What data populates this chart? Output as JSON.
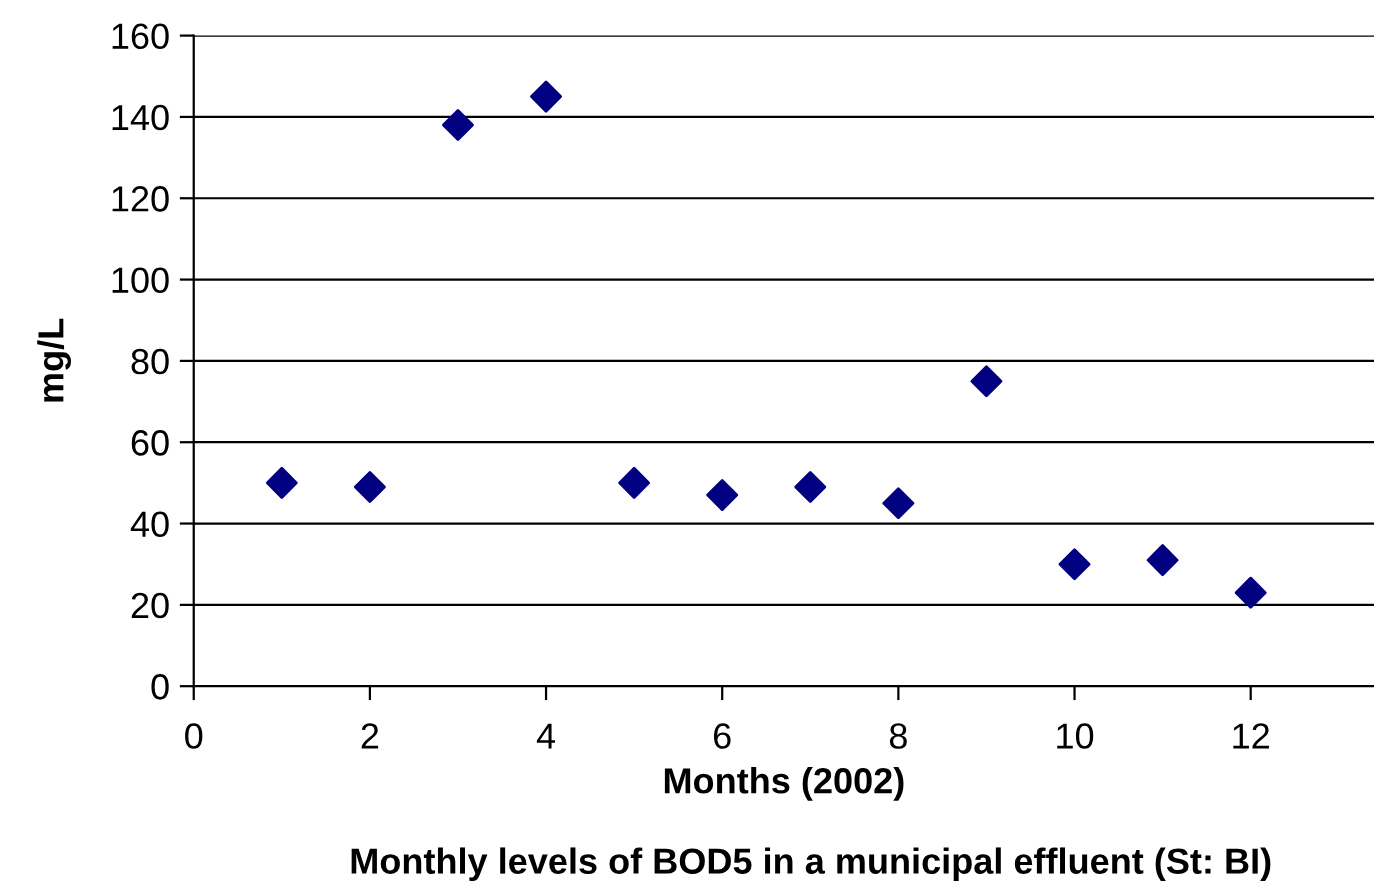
{
  "chart_data": {
    "type": "scatter",
    "title": "Monthly levels of BOD5 in a municipal effluent (St: BI)",
    "xlabel": "Months (2002)",
    "ylabel": "mg/L",
    "x": [
      1,
      2,
      3,
      4,
      5,
      6,
      7,
      8,
      9,
      10,
      11,
      12
    ],
    "series": [
      {
        "color": "#000080",
        "values": [
          50,
          49,
          138,
          145,
          50,
          47,
          49,
          45,
          75,
          30,
          31,
          23
        ]
      }
    ],
    "xlim": [
      0,
      13.4
    ],
    "xticks": [
      0,
      2,
      4,
      6,
      8,
      10,
      12
    ],
    "ylim": [
      0,
      160
    ],
    "yticks": [
      0,
      20,
      40,
      60,
      80,
      100,
      120,
      140,
      160
    ],
    "grid": "y",
    "marker": "diamond",
    "legend": false
  }
}
